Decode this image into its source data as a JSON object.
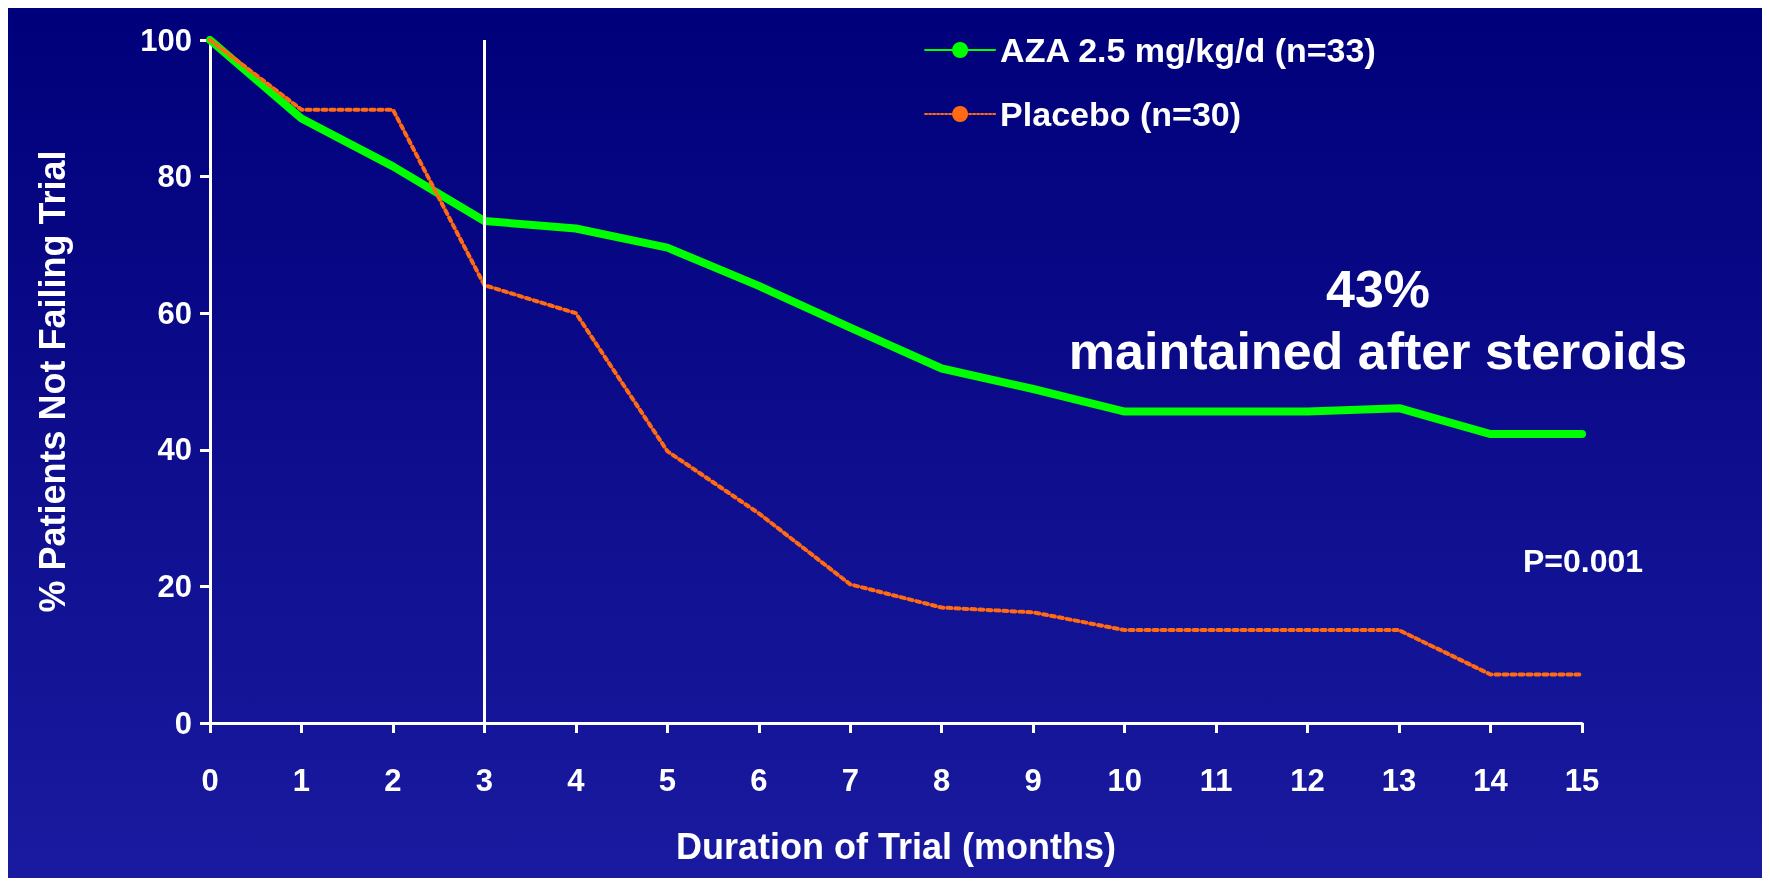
{
  "chart_data": {
    "type": "line",
    "xlabel": "Duration of Trial (months)",
    "ylabel": "% Patients Not Failing Trial",
    "x": [
      0,
      1,
      2,
      3,
      4,
      5,
      6,
      7,
      8,
      9,
      10,
      11,
      12,
      13,
      14,
      15
    ],
    "series": [
      {
        "name": "AZA 2.5 mg/kg/d (n=33)",
        "color": "#00ff00",
        "line_style": "solid",
        "values": [
          100,
          88.5,
          81.5,
          73.5,
          72.4,
          69.6,
          64,
          57.9,
          51.9,
          48.9,
          45.6,
          45.6,
          45.6,
          46.1,
          42.3,
          42.3
        ]
      },
      {
        "name": "Placebo (n=30)",
        "color": "#ff6a13",
        "line_style": "dotted",
        "values": [
          100,
          89.8,
          89.8,
          64.1,
          60,
          39.8,
          30.7,
          20.3,
          16.9,
          16.2,
          13.6,
          13.6,
          13.6,
          13.6,
          7.1,
          7.1
        ]
      }
    ],
    "xlim": [
      0,
      15
    ],
    "xticks": [
      0,
      1,
      2,
      3,
      4,
      5,
      6,
      7,
      8,
      9,
      10,
      11,
      12,
      13,
      14,
      15
    ],
    "ylim": [
      0,
      100
    ],
    "yticks": [
      0,
      20,
      40,
      60,
      80,
      100
    ],
    "ref_lines": [
      {
        "axis": "x",
        "value": 3,
        "color": "#ffffff"
      }
    ],
    "annotations": [
      "43%\nmaintained after steroids",
      "P=0.001"
    ],
    "grid": false,
    "legend": "top right",
    "marker": "none"
  }
}
